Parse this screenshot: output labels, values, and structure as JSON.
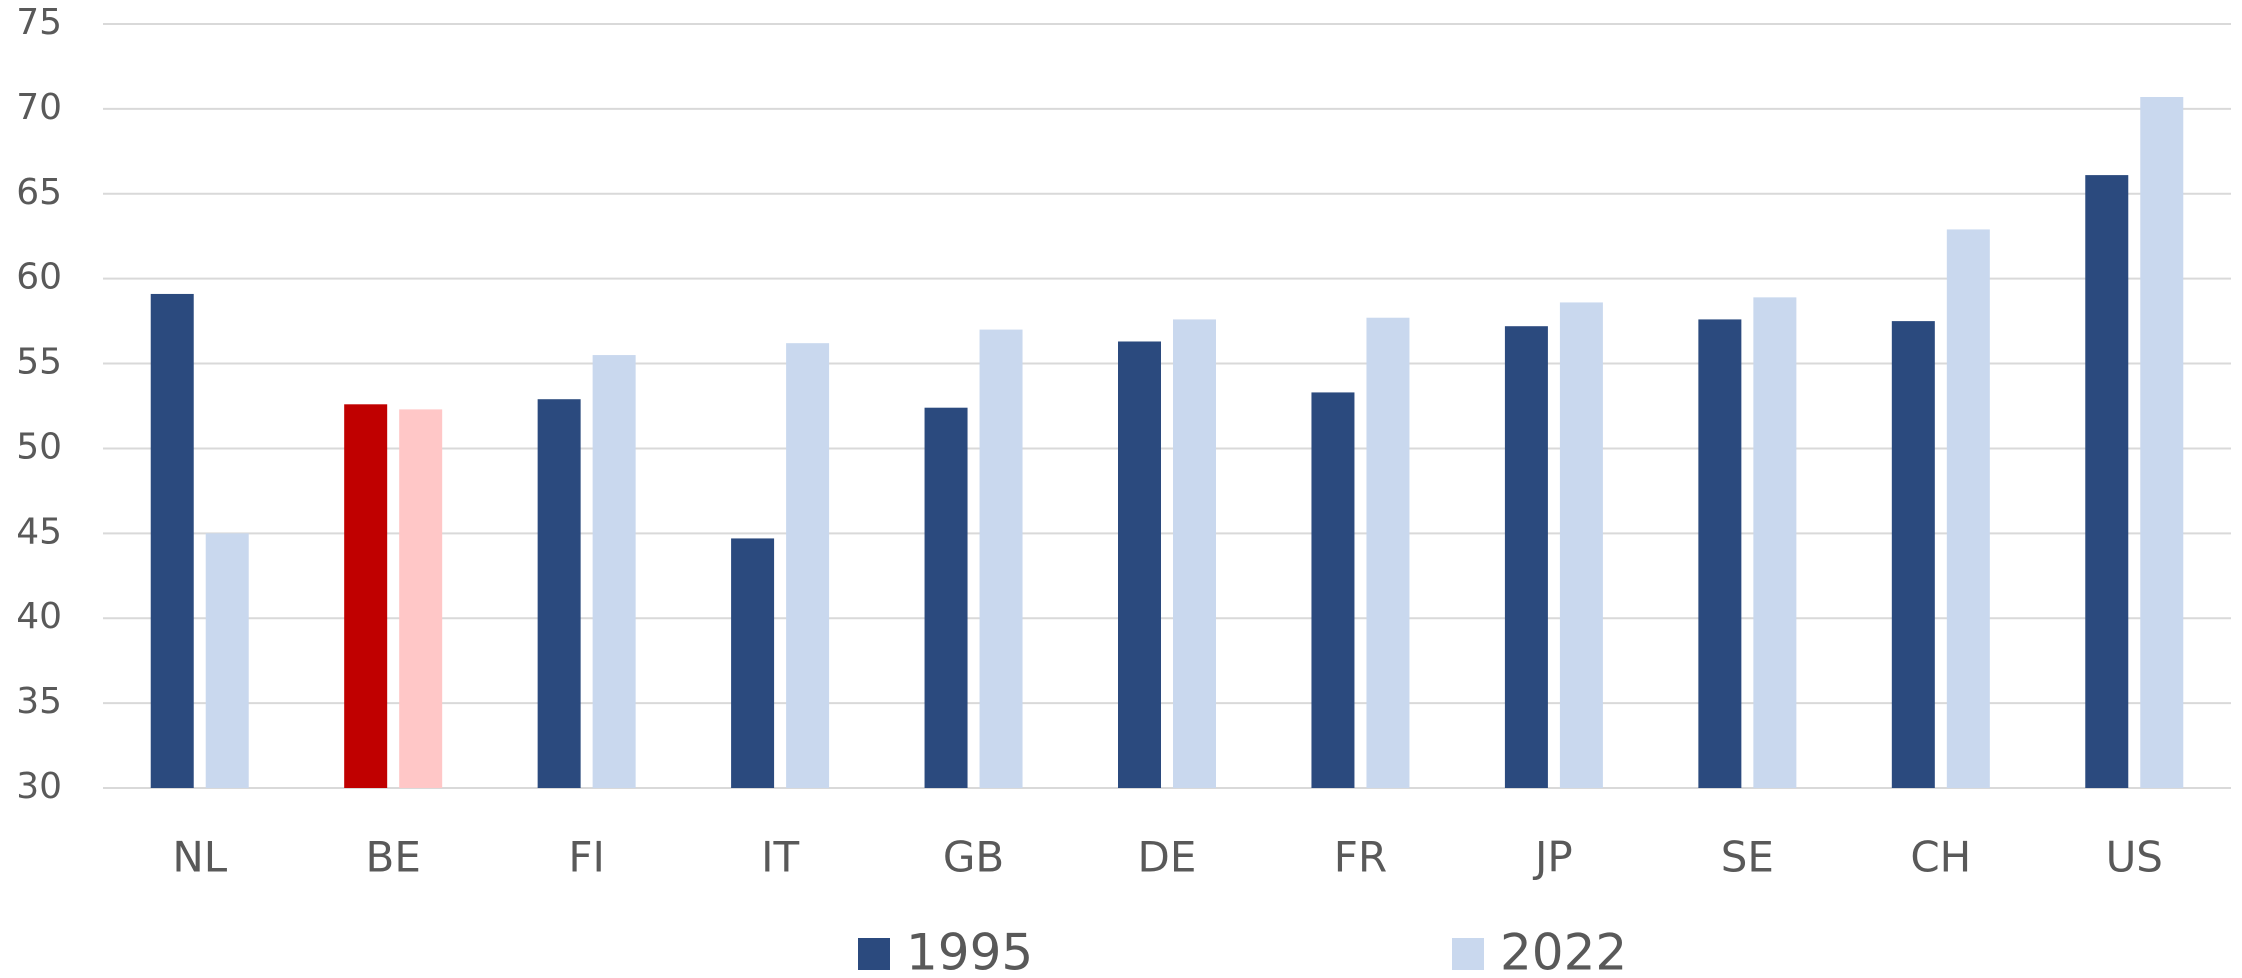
{
  "chart_data": {
    "type": "bar",
    "categories": [
      "NL",
      "BE",
      "FI",
      "IT",
      "GB",
      "DE",
      "FR",
      "JP",
      "SE",
      "CH",
      "US"
    ],
    "series": [
      {
        "name": "1995",
        "color": "#2b4a7e",
        "colors": [
          "#2b4a7e",
          "#c00000",
          "#2b4a7e",
          "#2b4a7e",
          "#2b4a7e",
          "#2b4a7e",
          "#2b4a7e",
          "#2b4a7e",
          "#2b4a7e",
          "#2b4a7e",
          "#2b4a7e"
        ],
        "values": [
          59.1,
          52.6,
          52.9,
          44.7,
          52.4,
          56.3,
          53.3,
          57.2,
          57.6,
          57.5,
          66.1
        ]
      },
      {
        "name": "2022",
        "color": "#c9d8ee",
        "colors": [
          "#c9d8ee",
          "#ffc7c7",
          "#c9d8ee",
          "#c9d8ee",
          "#c9d8ee",
          "#c9d8ee",
          "#c9d8ee",
          "#c9d8ee",
          "#c9d8ee",
          "#c9d8ee",
          "#c9d8ee"
        ],
        "values": [
          45.0,
          52.3,
          55.5,
          56.2,
          57.0,
          57.6,
          57.7,
          58.6,
          58.9,
          62.9,
          70.7
        ]
      }
    ],
    "ylim": [
      30,
      75
    ],
    "yticks": [
      30,
      35,
      40,
      45,
      50,
      55,
      60,
      65,
      70,
      75
    ],
    "grid": true,
    "legend": "bottom"
  }
}
